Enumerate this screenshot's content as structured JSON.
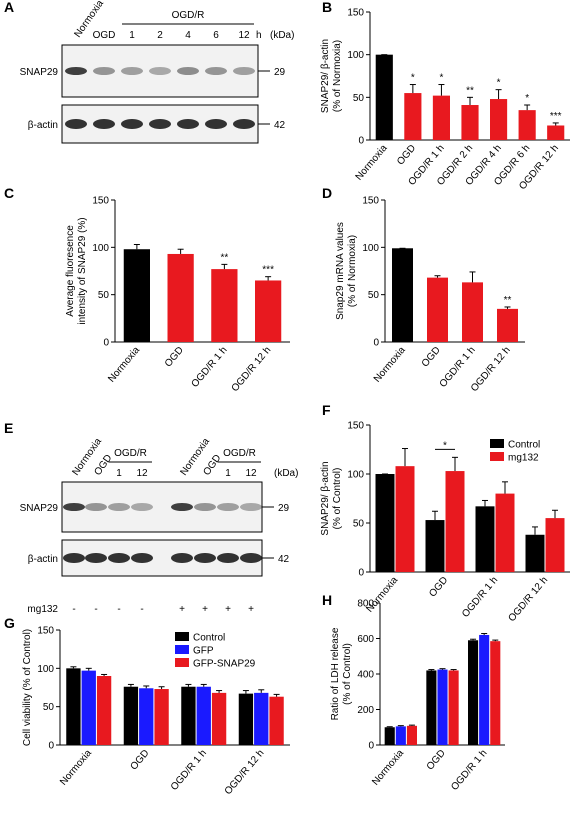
{
  "blots": [
    {
      "label": "A",
      "conditions": [
        "Normoxia",
        "OGD"
      ],
      "group": "OGD/R",
      "times": [
        "1",
        "2",
        "4",
        "6",
        "12"
      ],
      "time_unit": "h",
      "unit": "(kDa)",
      "rows": [
        {
          "name": "SNAP29",
          "kda": 29
        },
        {
          "name": "β-actin",
          "kda": 42
        }
      ]
    },
    {
      "label": "E",
      "conditions": [
        "Normoxia",
        "OGD"
      ],
      "group": "OGD/R",
      "times": [
        "1",
        "12"
      ],
      "unit": "(kDa)",
      "rows": [
        {
          "name": "SNAP29",
          "kda": 29
        },
        {
          "name": "β-actin",
          "kda": 42
        }
      ],
      "treatment": "mg132",
      "treatment_signs": [
        "-",
        "-",
        "-",
        "-",
        "+",
        "+",
        "+",
        "+"
      ]
    }
  ],
  "chart_data": [
    {
      "type": "bar",
      "label": "B",
      "ylabel": [
        "SNAP29/ β-actin",
        "(% of Normoxia)"
      ],
      "categories": [
        "Normoxia",
        "OGD",
        "OGD/R 1 h",
        "OGD/R 2 h",
        "OGD/R 4 h",
        "OGD/R 6 h",
        "OGD/R 12 h"
      ],
      "values": [
        100,
        55,
        52,
        41,
        48,
        35,
        17
      ],
      "errors": [
        0,
        10,
        13,
        9,
        11,
        6,
        3
      ],
      "significance": [
        null,
        "*",
        "*",
        "**",
        "*",
        "*",
        "***"
      ],
      "colors": [
        "#000000",
        "#e8191f",
        "#e8191f",
        "#e8191f",
        "#e8191f",
        "#e8191f",
        "#e8191f"
      ],
      "ylim": [
        0,
        150
      ],
      "yticks": [
        0,
        50,
        100,
        150
      ]
    },
    {
      "type": "bar",
      "label": "C",
      "ylabel": [
        "Average fluoresence",
        "intensity of SNAP29 (%)"
      ],
      "categories": [
        "Normoxia",
        "OGD",
        "OGD/R 1 h",
        "OGD/R 12 h"
      ],
      "values": [
        98,
        93,
        77,
        65
      ],
      "errors": [
        5,
        5,
        5,
        4
      ],
      "significance": [
        null,
        null,
        "**",
        "***"
      ],
      "colors": [
        "#000000",
        "#e8191f",
        "#e8191f",
        "#e8191f"
      ],
      "ylim": [
        0,
        150
      ],
      "yticks": [
        0,
        50,
        100,
        150
      ]
    },
    {
      "type": "bar",
      "label": "D",
      "ylabel": [
        "Snap29 mRNA values",
        "(% of Normoxia)"
      ],
      "categories": [
        "Normoxia",
        "OGD",
        "OGD/R 1 h",
        "OGD/R 12 h"
      ],
      "values": [
        99,
        68,
        63,
        35
      ],
      "errors": [
        0,
        2,
        11,
        2
      ],
      "significance": [
        null,
        null,
        null,
        "**"
      ],
      "colors": [
        "#000000",
        "#e8191f",
        "#e8191f",
        "#e8191f"
      ],
      "ylim": [
        0,
        150
      ],
      "yticks": [
        0,
        50,
        100,
        150
      ]
    },
    {
      "type": "grouped_bar",
      "label": "F",
      "ylabel": [
        "SNAP29/ β-actin",
        "(% of Control)"
      ],
      "categories": [
        "Normoxia",
        "OGD",
        "OGD/R 1 h",
        "OGD/R 12 h"
      ],
      "series": [
        {
          "name": "Control",
          "color": "#000000",
          "values": [
            100,
            53,
            67,
            38
          ],
          "errors": [
            0,
            9,
            6,
            8
          ]
        },
        {
          "name": "mg132",
          "color": "#e8191f",
          "values": [
            108,
            103,
            80,
            55
          ],
          "errors": [
            18,
            14,
            12,
            8
          ]
        }
      ],
      "significance": [
        null,
        "*",
        null,
        null
      ],
      "ylim": [
        0,
        150
      ],
      "yticks": [
        0,
        50,
        100,
        150
      ],
      "legend": "top-right"
    },
    {
      "type": "grouped_bar",
      "label": "G",
      "ylabel": [
        "Cell viability (% of Control)"
      ],
      "categories": [
        "Normoxia",
        "OGD",
        "OGD/R 1 h",
        "OGD/R 12 h"
      ],
      "series": [
        {
          "name": "Control",
          "color": "#000000",
          "values": [
            100,
            76,
            76,
            67
          ],
          "errors": [
            2,
            3,
            3,
            4
          ]
        },
        {
          "name": "GFP",
          "color": "#1a1aff",
          "values": [
            97,
            74,
            76,
            68
          ],
          "errors": [
            3,
            3,
            3,
            4
          ]
        },
        {
          "name": "GFP-SNAP29",
          "color": "#e8191f",
          "values": [
            90,
            73,
            68,
            63
          ],
          "errors": [
            2,
            3,
            3,
            3
          ]
        }
      ],
      "ylim": [
        0,
        150
      ],
      "yticks": [
        0,
        50,
        100,
        150
      ],
      "legend": "top-right"
    },
    {
      "type": "grouped_bar",
      "label": "H",
      "ylabel": [
        "Ratio of LDH release",
        "(% of Control)"
      ],
      "categories": [
        "Normoxia",
        "OGD",
        "OGD/R 1 h"
      ],
      "series": [
        {
          "name": "Control",
          "color": "#000000",
          "values": [
            100,
            420,
            590
          ],
          "errors": [
            3,
            5,
            6
          ]
        },
        {
          "name": "GFP",
          "color": "#1a1aff",
          "values": [
            105,
            425,
            620
          ],
          "errors": [
            4,
            5,
            8
          ]
        },
        {
          "name": "GFP-SNAP29",
          "color": "#e8191f",
          "values": [
            108,
            420,
            585
          ],
          "errors": [
            4,
            5,
            6
          ]
        }
      ],
      "ylim": [
        0,
        800
      ],
      "yticks": [
        0,
        200,
        400,
        600,
        800
      ]
    }
  ]
}
